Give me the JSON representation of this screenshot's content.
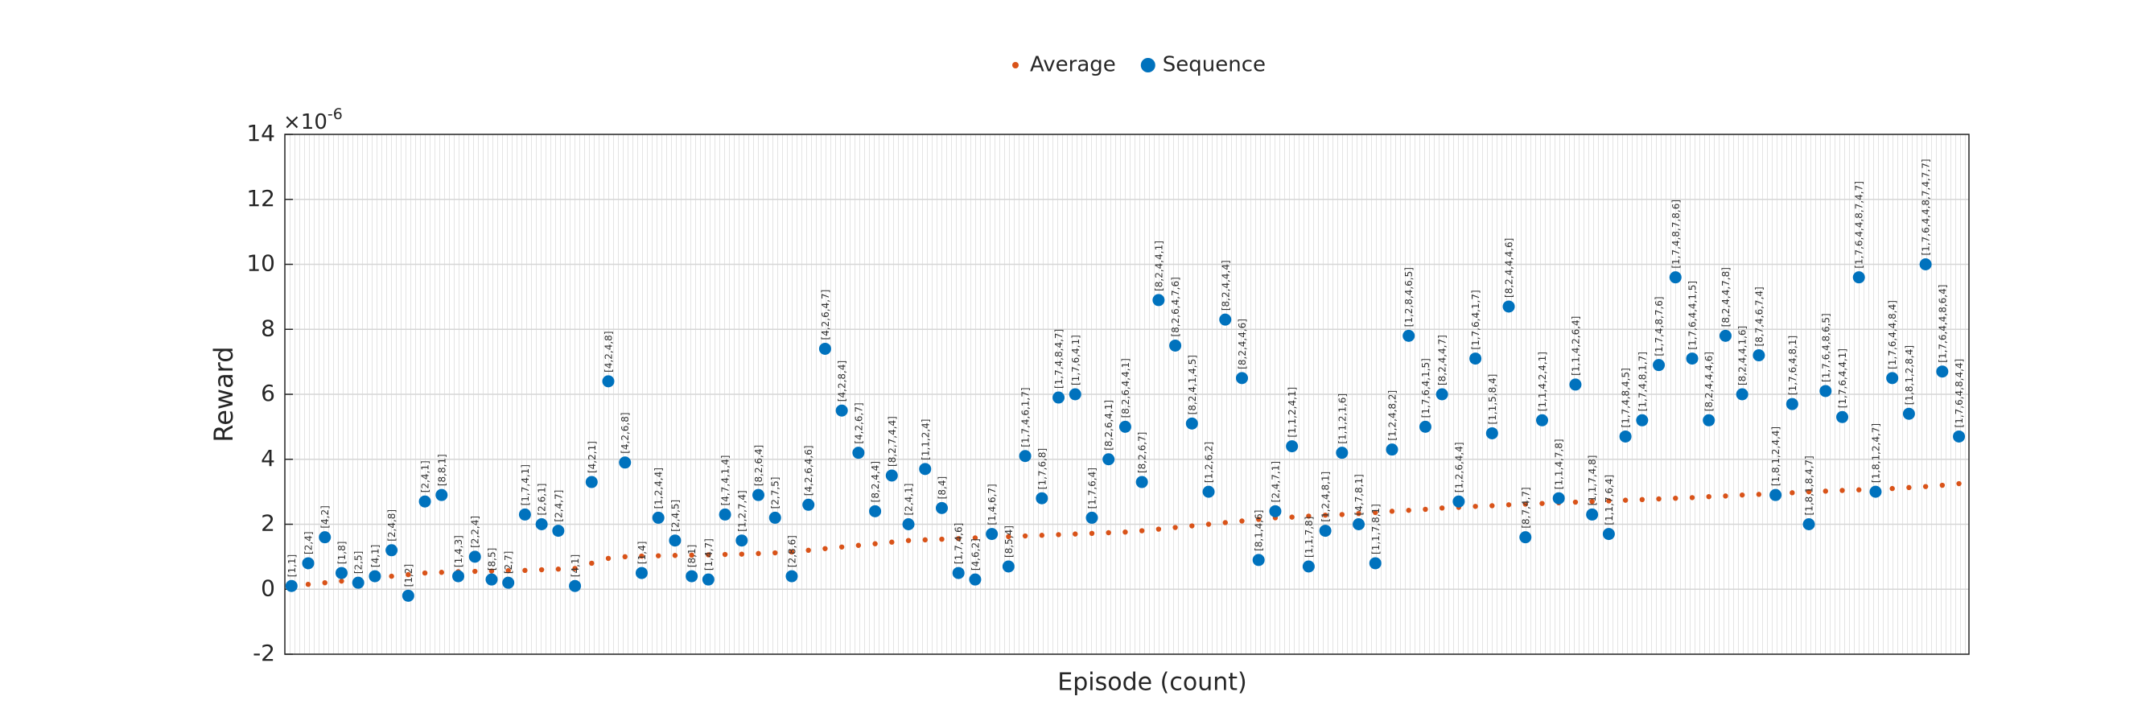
{
  "chart_data": {
    "type": "scatter",
    "xlabel": "Episode (count)",
    "ylabel": "Reward",
    "y_multiplier": "×10",
    "y_multiplier_exponent": "-6",
    "xlim": [
      0,
      505
    ],
    "ylim": [
      -2,
      14
    ],
    "yticks": [
      -2,
      0,
      2,
      4,
      6,
      8,
      10,
      12,
      14
    ],
    "grid": true,
    "legend_position": "top",
    "x": [
      2,
      7,
      12,
      17,
      22,
      27,
      32,
      37,
      42,
      47,
      52,
      57,
      62,
      67,
      72,
      77,
      82,
      87,
      92,
      97,
      102,
      107,
      112,
      117,
      122,
      127,
      132,
      137,
      142,
      147,
      152,
      157,
      162,
      167,
      172,
      177,
      182,
      187,
      192,
      197,
      202,
      207,
      212,
      217,
      222,
      227,
      232,
      237,
      242,
      247,
      252,
      257,
      262,
      267,
      272,
      277,
      282,
      287,
      292,
      297,
      302,
      307,
      312,
      317,
      322,
      327,
      332,
      337,
      342,
      347,
      352,
      357,
      362,
      367,
      372,
      377,
      382,
      387,
      392,
      397,
      402,
      407,
      412,
      417,
      422,
      427,
      432,
      437,
      442,
      447,
      452,
      457,
      462,
      467,
      472,
      477,
      482,
      487,
      492,
      497,
      502
    ],
    "series": [
      {
        "name": "Average",
        "color": "#D95319",
        "marker": "dot",
        "values": [
          0.1,
          0.15,
          0.2,
          0.25,
          0.3,
          0.35,
          0.4,
          0.45,
          0.5,
          0.52,
          0.54,
          0.55,
          0.56,
          0.57,
          0.58,
          0.6,
          0.62,
          0.64,
          0.8,
          0.95,
          1.0,
          1.02,
          1.03,
          1.04,
          1.05,
          1.06,
          1.07,
          1.08,
          1.1,
          1.12,
          1.15,
          1.2,
          1.25,
          1.3,
          1.35,
          1.4,
          1.45,
          1.5,
          1.52,
          1.54,
          1.56,
          1.58,
          1.6,
          1.62,
          1.64,
          1.66,
          1.68,
          1.7,
          1.72,
          1.74,
          1.76,
          1.8,
          1.85,
          1.9,
          1.95,
          2.0,
          2.05,
          2.1,
          2.15,
          2.2,
          2.22,
          2.25,
          2.28,
          2.3,
          2.33,
          2.36,
          2.4,
          2.43,
          2.46,
          2.5,
          2.52,
          2.55,
          2.57,
          2.6,
          2.62,
          2.64,
          2.66,
          2.68,
          2.7,
          2.72,
          2.74,
          2.76,
          2.78,
          2.8,
          2.82,
          2.85,
          2.87,
          2.9,
          2.92,
          2.95,
          2.97,
          3.0,
          3.02,
          3.04,
          3.06,
          3.08,
          3.1,
          3.13,
          3.16,
          3.2,
          3.25
        ]
      },
      {
        "name": "Sequence",
        "color": "#0072BD",
        "marker": "circle",
        "values": [
          0.1,
          0.8,
          1.6,
          0.5,
          0.2,
          0.4,
          1.2,
          -0.2,
          2.7,
          2.9,
          0.4,
          1.0,
          0.3,
          0.2,
          2.3,
          2.0,
          1.8,
          0.1,
          3.3,
          6.4,
          3.9,
          0.5,
          2.2,
          1.5,
          0.4,
          0.3,
          2.3,
          1.5,
          2.9,
          2.2,
          0.4,
          2.6,
          7.4,
          5.5,
          4.2,
          2.4,
          3.5,
          2.0,
          3.7,
          2.5,
          0.5,
          0.3,
          1.7,
          0.7,
          4.1,
          2.8,
          5.9,
          6.0,
          2.2,
          4.0,
          5.0,
          3.3,
          8.9,
          7.5,
          5.1,
          3.0,
          8.3,
          6.5,
          0.9,
          2.4,
          4.4,
          0.7,
          1.8,
          4.2,
          2.0,
          0.8,
          4.3,
          7.8,
          5.0,
          6.0,
          2.7,
          7.1,
          4.8,
          8.7,
          1.6,
          5.2,
          2.8,
          6.3,
          2.3,
          1.7,
          4.7,
          5.2,
          6.9,
          9.6,
          7.1,
          5.2,
          7.8,
          6.0,
          7.2,
          2.9,
          5.7,
          2.0,
          6.1,
          5.3,
          9.6,
          3.0,
          6.5,
          5.4,
          10.0,
          6.7,
          4.7
        ],
        "point_labels": [
          "[1,1]",
          "[2,4]",
          "[4,2]",
          "[1,8]",
          "[2,5]",
          "[4,1]",
          "[2,4,8]",
          "[1,2]",
          "[2,4,1]",
          "[8,8,1]",
          "[1,4,3]",
          "[2,2,4]",
          "[8,5]",
          "[2,7]",
          "[1,7,4,1]",
          "[2,6,1]",
          "[2,4,7]",
          "[4,1]",
          "[4,2,1]",
          "[4,2,4,8]",
          "[4,2,6,8]",
          "[1,4]",
          "[1,2,4,4]",
          "[2,4,5]",
          "[8,1]",
          "[1,4,7]",
          "[4,7,4,1,4]",
          "[1,2,7,4]",
          "[8,2,6,4]",
          "[2,7,5]",
          "[2,8,6]",
          "[4,2,6,4,6]",
          "[4,2,6,4,7]",
          "[4,2,8,4]",
          "[4,2,6,7]",
          "[8,2,4,4]",
          "[8,2,7,4,4]",
          "[2,4,1]",
          "[1,1,2,4]",
          "[8,4]",
          "[1,7,4,6]",
          "[4,6,2]",
          "[1,4,6,7]",
          "[8,5,4]",
          "[1,7,4,6,1,7]",
          "[1,7,6,8]",
          "[1,7,4,8,4,7]",
          "[1,7,6,4,1]",
          "[1,7,6,4]",
          "[8,2,6,4,1]",
          "[8,2,6,4,4,1]",
          "[8,2,6,7]",
          "[8,2,4,4,1]",
          "[8,2,6,4,7,6]",
          "[8,2,4,1,4,5]",
          "[1,2,6,2]",
          "[8,2,4,4,4]",
          "[8,2,4,4,6]",
          "[8,1,4,6]",
          "[2,4,7,1]",
          "[1,1,2,4,1]",
          "[1,1,7,8]",
          "[1,2,4,8,1]",
          "[1,1,2,1,6]",
          "[4,7,8,1]",
          "[1,1,7,8,1]",
          "[1,2,4,8,2]",
          "[1,2,8,4,6,5]",
          "[1,7,6,4,1,5]",
          "[8,2,4,4,7]",
          "[1,2,6,4,4]",
          "[1,7,6,4,1,7]",
          "[1,1,5,8,4]",
          "[8,2,4,4,4,6]",
          "[8,7,4,7]",
          "[1,1,4,2,4,1]",
          "[1,1,4,7,8]",
          "[1,1,4,2,6,4]",
          "[1,1,7,4,8]",
          "[1,1,7,6,4]",
          "[1,7,4,8,4,5]",
          "[1,7,4,8,1,7]",
          "[1,7,4,8,7,6]",
          "[1,7,4,8,7,8,6]",
          "[1,7,6,4,4,1,5]",
          "[8,2,4,4,4,6]",
          "[8,2,4,4,7,8]",
          "[8,2,4,4,1,6]",
          "[8,7,4,6,7,4]",
          "[1,8,1,2,4,4]",
          "[1,7,6,4,8,1]",
          "[1,8,1,8,4,7]",
          "[1,7,6,4,8,6,5]",
          "[1,7,6,4,4,1]",
          "[1,7,6,4,4,8,7,4,7]",
          "[1,8,1,2,4,7]",
          "[1,7,6,4,4,8,4]",
          "[1,8,1,2,8,4]",
          "[1,7,6,4,4,8,7,4,7,7]",
          "[1,7,6,4,4,8,6,4]",
          "[1,7,6,4,8,4,4]"
        ]
      }
    ]
  }
}
